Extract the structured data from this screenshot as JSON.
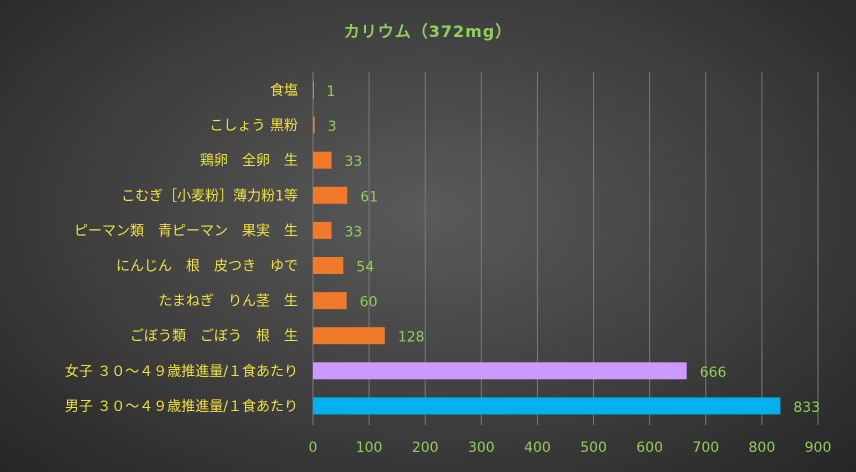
{
  "chart_data": {
    "type": "bar",
    "orientation": "horizontal",
    "title": "カリウム（372mg）",
    "categories": [
      "食塩",
      "こしょう 黒粉",
      "鶏卵　全卵　生",
      "こむぎ［小麦粉］薄力粉1等",
      "ピーマン類　青ピーマン　果実　生",
      "にんじん　根　皮つき　ゆで",
      "たまねぎ　りん茎　生",
      "ごぼう類　ごぼう　根　生",
      "女子 ３０～４９歳推進量/１食あたり",
      "男子 ３０～４９歳推進量/１食あたり"
    ],
    "values": [
      1,
      3,
      33,
      61,
      33,
      54,
      60,
      128,
      666,
      833
    ],
    "bar_colors": [
      "#f07a2a",
      "#f07a2a",
      "#f07a2a",
      "#f07a2a",
      "#f07a2a",
      "#f07a2a",
      "#f07a2a",
      "#f07a2a",
      "#cc99ff",
      "#00b0f0"
    ],
    "xlim": [
      0,
      900
    ],
    "xticks": [
      0,
      100,
      200,
      300,
      400,
      500,
      600,
      700,
      800,
      900
    ],
    "xlabel": "",
    "ylabel": "",
    "grid": true,
    "legend": "none",
    "colors": {
      "title": "#8fd05a",
      "category_label": "#f0e040",
      "value_label": "#8fd05a",
      "tick_label": "#8fd05a",
      "gridline": "#7a7a7a"
    }
  }
}
